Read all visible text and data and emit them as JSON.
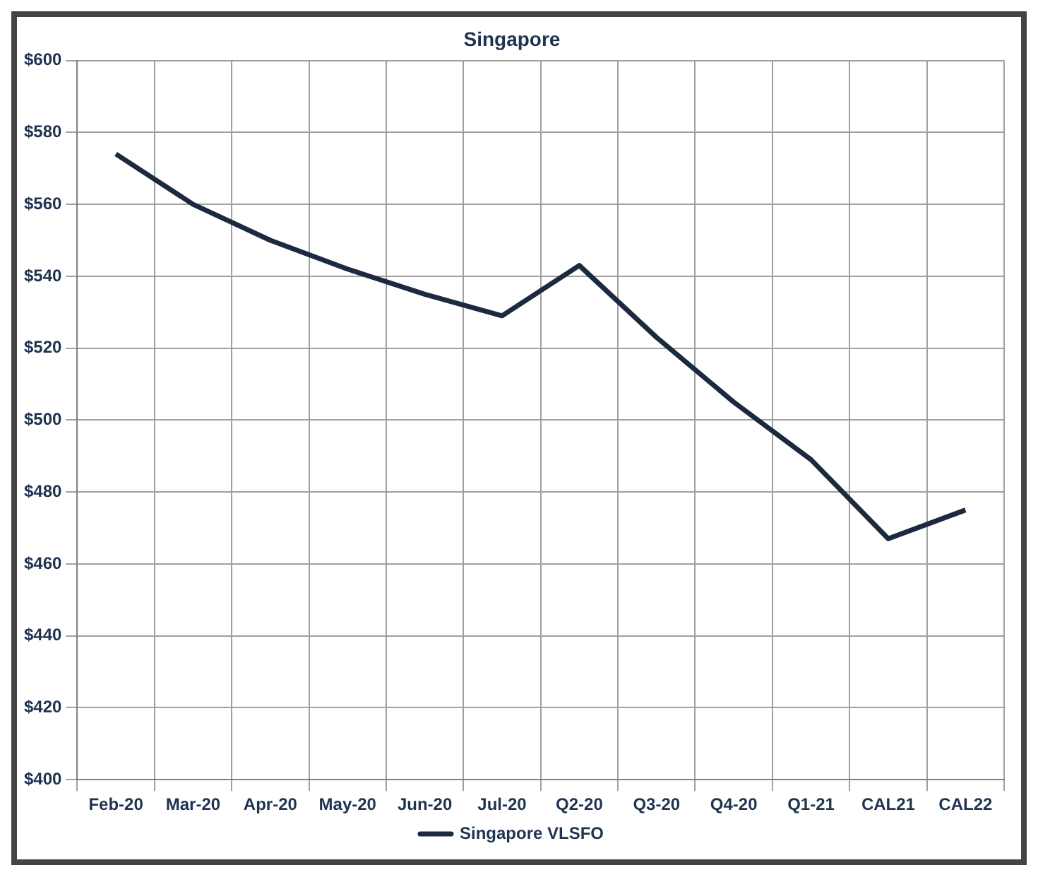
{
  "chart_data": {
    "type": "line",
    "title": "Singapore",
    "categories": [
      "Feb-20",
      "Mar-20",
      "Apr-20",
      "May-20",
      "Jun-20",
      "Jul-20",
      "Q2-20",
      "Q3-20",
      "Q4-20",
      "Q1-21",
      "CAL21",
      "CAL22"
    ],
    "series": [
      {
        "name": "Singapore VLSFO",
        "color": "#1c2a40",
        "values": [
          574,
          560,
          550,
          542,
          535,
          529,
          543,
          523,
          505,
          489,
          467,
          475
        ]
      }
    ],
    "ylim": [
      400,
      600
    ],
    "yticks": [
      {
        "value": 400,
        "label": "$400"
      },
      {
        "value": 420,
        "label": "$420"
      },
      {
        "value": 440,
        "label": "$440"
      },
      {
        "value": 460,
        "label": "$460"
      },
      {
        "value": 480,
        "label": "$480"
      },
      {
        "value": 500,
        "label": "$500"
      },
      {
        "value": 520,
        "label": "$520"
      },
      {
        "value": 540,
        "label": "$540"
      },
      {
        "value": 560,
        "label": "$560"
      },
      {
        "value": 580,
        "label": "$580"
      },
      {
        "value": 600,
        "label": "$600"
      }
    ],
    "grid": true,
    "legend": "bottom",
    "marker": "none",
    "line_style": "solid"
  }
}
